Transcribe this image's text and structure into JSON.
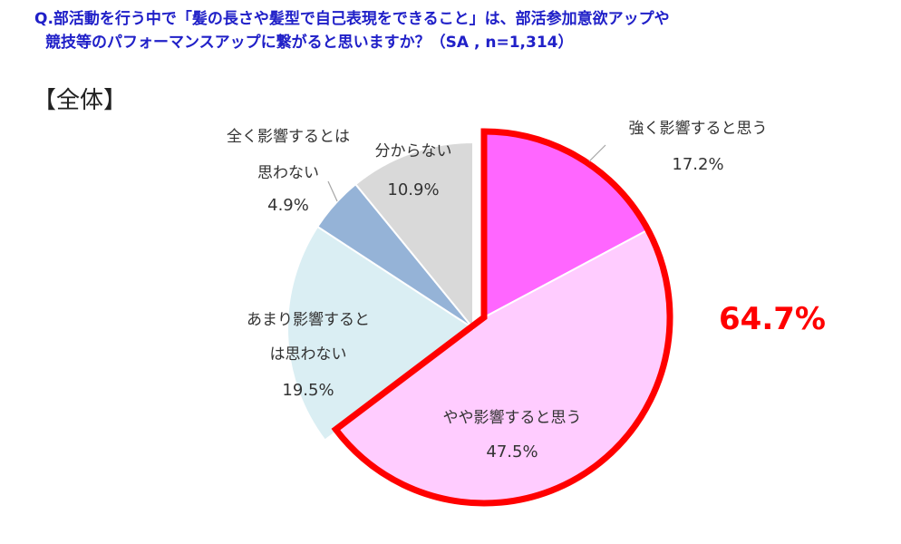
{
  "question": {
    "line1": "Q.部活動を行う中で「髪の長さや髪型で自己表現をできること」は、部活参加意欲アップや",
    "line2": "競技等のパフォーマンスアップに繋がると思いますか？（SA , n=1,314）"
  },
  "subtitle": "【全体】",
  "chart_data": {
    "type": "pie",
    "start": "12 o'clock, clockwise",
    "slices": [
      {
        "label_lines": [
          "強く影響すると思う"
        ],
        "value_text": "17.2%",
        "value": 17.2,
        "color": "#ff66ff"
      },
      {
        "label_lines": [
          "やや影響すると思う"
        ],
        "value_text": "47.5%",
        "value": 47.5,
        "color": "#ffccff"
      },
      {
        "label_lines": [
          "あまり影響すると",
          "は思わない"
        ],
        "value_text": "19.5%",
        "value": 19.5,
        "color": "#daeef3"
      },
      {
        "label_lines": [
          "全く影響するとは",
          "思わない"
        ],
        "value_text": "4.9%",
        "value": 4.9,
        "color": "#95b3d7"
      },
      {
        "label_lines": [
          "分からない"
        ],
        "value_text": "10.9%",
        "value": 10.9,
        "color": "#d9d9d9"
      }
    ],
    "highlight": {
      "value_text": "64.7%",
      "covers": [
        "強く影響すると思う",
        "やや影響すると思う"
      ],
      "color": "#ff0000"
    }
  }
}
